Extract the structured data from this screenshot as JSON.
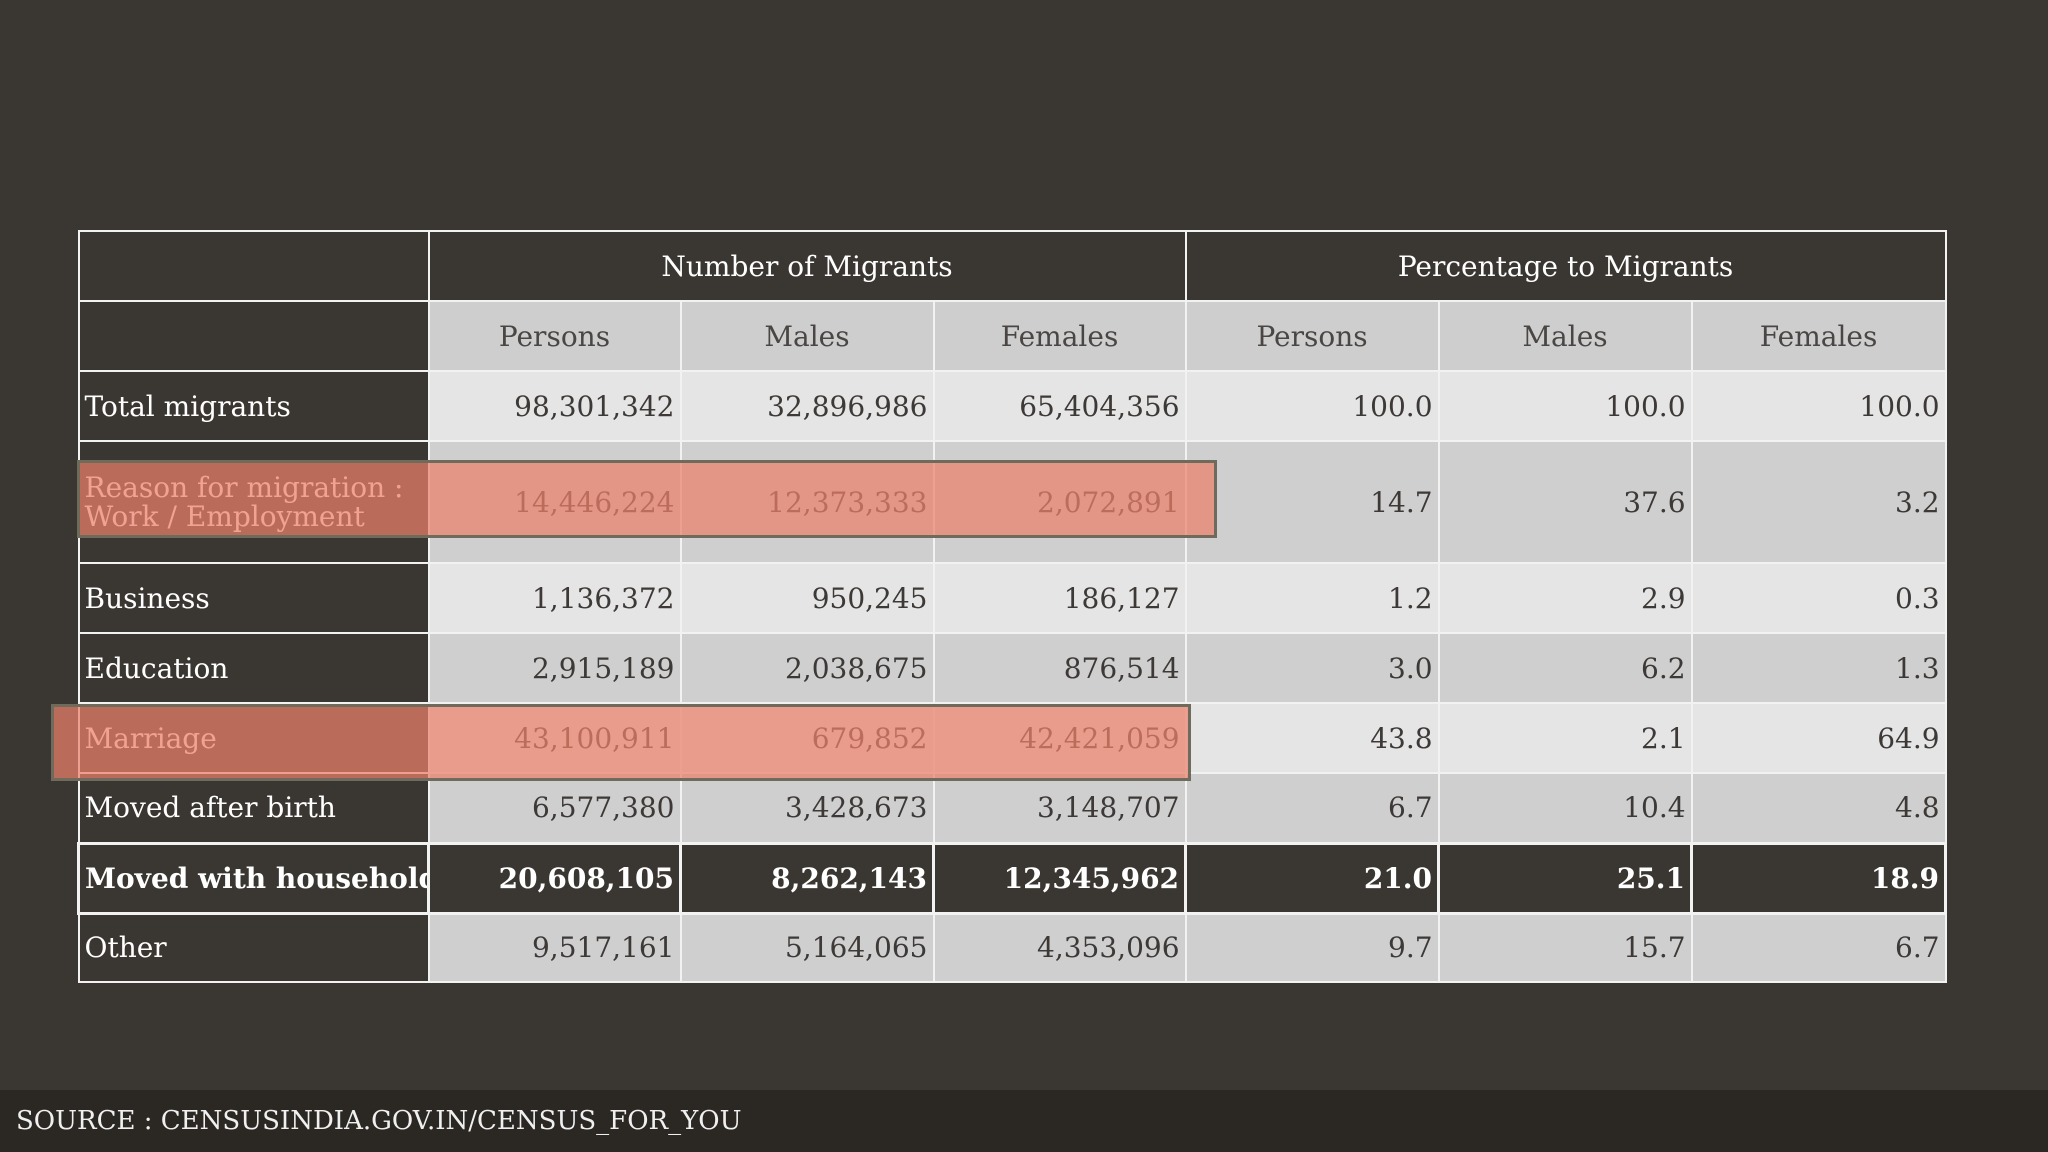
{
  "table": {
    "groups": [
      "Number of Migrants",
      "Percentage to Migrants"
    ],
    "subheaders": [
      "Persons",
      "Males",
      "Females",
      "Persons",
      "Males",
      "Females"
    ],
    "rows": [
      {
        "label": "Total migrants",
        "values": [
          "98,301,342",
          "32,896,986",
          "65,404,356",
          "100.0",
          "100.0",
          "100.0"
        ]
      },
      {
        "label_line1": "Reason for migration :",
        "label_line2": "Work / Employment",
        "values": [
          "14,446,224",
          "12,373,333",
          "2,072,891",
          "14.7",
          "37.6",
          "3.2"
        ]
      },
      {
        "label": "Business",
        "values": [
          "1,136,372",
          "950,245",
          "186,127",
          "1.2",
          "2.9",
          "0.3"
        ]
      },
      {
        "label": "Education",
        "values": [
          "2,915,189",
          "2,038,675",
          "876,514",
          "3.0",
          "6.2",
          "1.3"
        ]
      },
      {
        "label": "Marriage",
        "values": [
          "43,100,911",
          "679,852",
          "42,421,059",
          "43.8",
          "2.1",
          "64.9"
        ]
      },
      {
        "label": "Moved after birth",
        "values": [
          "6,577,380",
          "3,428,673",
          "3,148,707",
          "6.7",
          "10.4",
          "4.8"
        ]
      },
      {
        "label": "Moved with households",
        "values": [
          "20,608,105",
          "8,262,143",
          "12,345,962",
          "21.0",
          "25.1",
          "18.9"
        ]
      },
      {
        "label": "Other",
        "values": [
          "9,517,161",
          "5,164,065",
          "4,353,096",
          "9.7",
          "15.7",
          "6.7"
        ]
      }
    ]
  },
  "highlight_color": "#ec806a",
  "footer": {
    "source": "SOURCE : CENSUSINDIA.GOV.IN/CENSUS_FOR_YOU"
  }
}
